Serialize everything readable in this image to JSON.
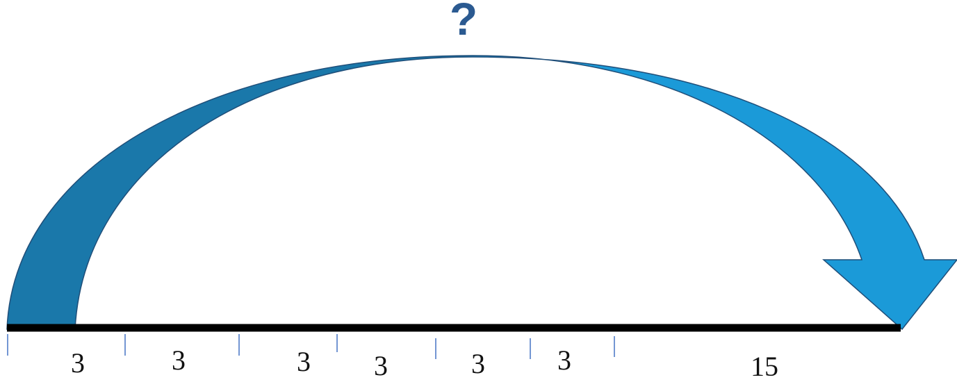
{
  "question_mark": "?",
  "segments": [
    {
      "label": "3"
    },
    {
      "label": "3"
    },
    {
      "label": "3"
    },
    {
      "label": "3"
    },
    {
      "label": "3"
    },
    {
      "label": "3"
    },
    {
      "label": "15"
    }
  ],
  "colors": {
    "arrow_left": "#1a78aa",
    "arrow_right": "#1b9ad8",
    "arrow_outline": "#1f4e79",
    "question_mark": "#2b5a91",
    "number_line": "#000000",
    "ticks": "#4472c4"
  }
}
